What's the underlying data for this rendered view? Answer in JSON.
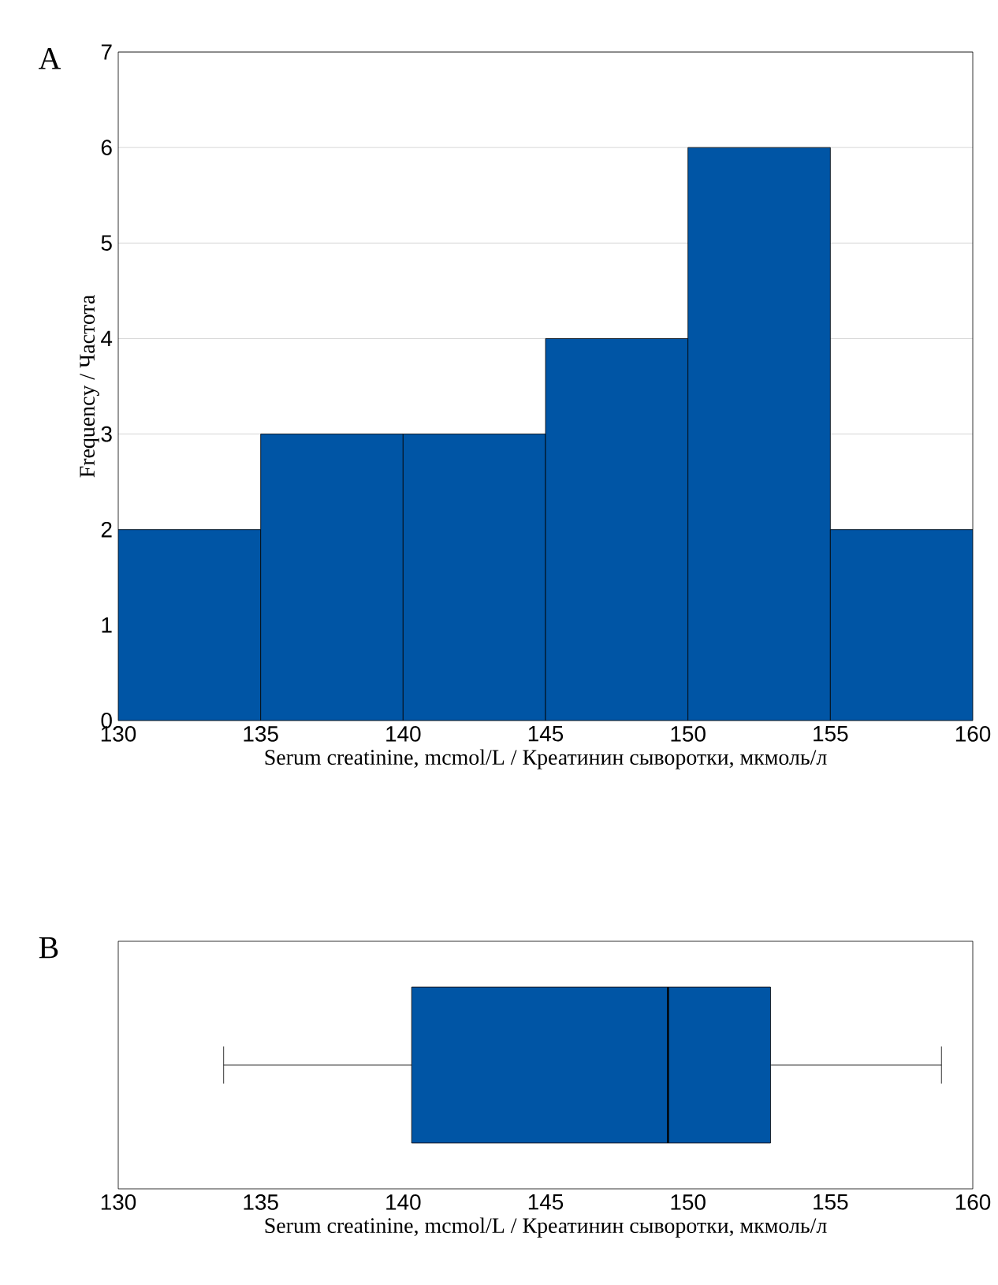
{
  "chart_data": [
    {
      "type": "histogram",
      "title": "A",
      "xlabel": "Serum creatinine, mcmol/L / Креатинин сыворотки, мкмоль/л",
      "ylabel": "Frequency / Частота",
      "bins": [
        130,
        135,
        140,
        145,
        150,
        155,
        160
      ],
      "values": [
        2,
        3,
        3,
        4,
        6,
        2
      ],
      "color": "#0055a5",
      "xlim": [
        130,
        160
      ],
      "xticks": [
        130,
        135,
        140,
        145,
        150,
        155,
        160
      ],
      "ylim": [
        0,
        7
      ],
      "yticks": [
        0,
        1,
        2,
        3,
        4,
        5,
        6,
        7
      ],
      "grid": "y"
    },
    {
      "type": "box",
      "title": "B",
      "xlabel": "Serum creatinine, mcmol/L / Креатинин сыворотки, мкмоль/л",
      "orientation": "horizontal",
      "categories": [
        null
      ],
      "color": "#0055a5",
      "boxes": [
        {
          "low": 133.7,
          "q1": 140.3,
          "median": 149.3,
          "q3": 152.9,
          "high": 158.9
        }
      ],
      "xlim": [
        130,
        160
      ],
      "xticks": [
        130,
        135,
        140,
        145,
        150,
        155,
        160
      ],
      "tick_labels": "x"
    }
  ]
}
